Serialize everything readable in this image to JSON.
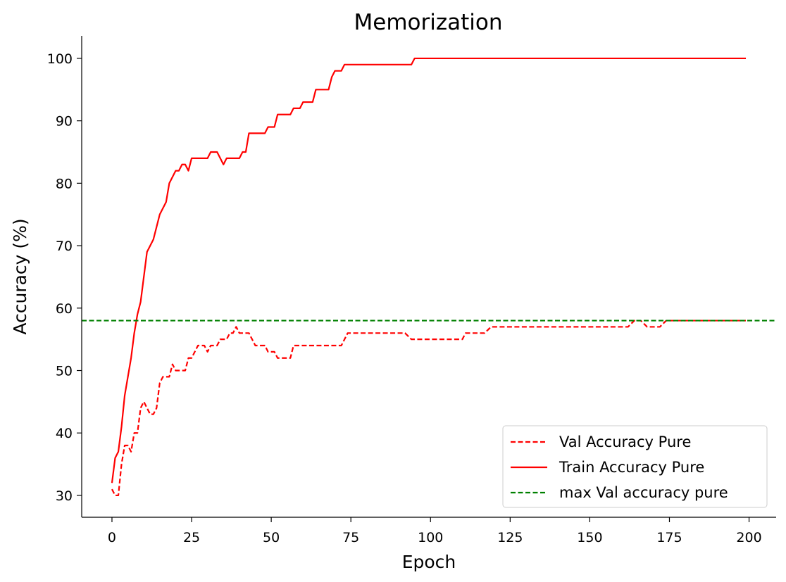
{
  "chart_data": {
    "type": "line",
    "title": "Memorization",
    "xlabel": "Epoch",
    "ylabel": "Accuracy (%)",
    "xlim": [
      -9.5,
      208.5
    ],
    "ylim": [
      26.5,
      103.6
    ],
    "xticks": [
      0,
      25,
      50,
      75,
      100,
      125,
      150,
      175,
      200
    ],
    "yticks": [
      30,
      40,
      50,
      60,
      70,
      80,
      90,
      100
    ],
    "grid": false,
    "legend_position": "lower-right",
    "series": [
      {
        "name": "Val Accuracy Pure",
        "color": "#ff0000",
        "style": "dashed",
        "x": [
          0,
          1,
          2,
          3,
          4,
          5,
          6,
          7,
          8,
          9,
          10,
          11,
          12,
          13,
          14,
          15,
          16,
          17,
          18,
          19,
          20,
          21,
          22,
          23,
          24,
          25,
          26,
          27,
          28,
          29,
          30,
          31,
          32,
          33,
          34,
          35,
          36,
          37,
          38,
          39,
          40,
          41,
          42,
          43,
          44,
          45,
          46,
          47,
          48,
          49,
          50,
          51,
          52,
          53,
          54,
          55,
          56,
          57,
          58,
          60,
          65,
          70,
          72,
          74,
          76,
          80,
          85,
          90,
          92,
          94,
          100,
          105,
          110,
          111,
          115,
          117,
          119,
          125,
          130,
          135,
          140,
          145,
          150,
          155,
          160,
          162,
          164,
          166,
          168,
          170,
          172,
          174,
          180,
          185,
          190,
          195,
          199
        ],
        "y": [
          31,
          30,
          30,
          35,
          38,
          38,
          37,
          40,
          40,
          44,
          45,
          44,
          43,
          43,
          44,
          48,
          49,
          49,
          49,
          51,
          50,
          50,
          50,
          50,
          52,
          52,
          53,
          54,
          54,
          54,
          53,
          54,
          54,
          54,
          55,
          55,
          55,
          56,
          56,
          57,
          56,
          56,
          56,
          56,
          55,
          54,
          54,
          54,
          54,
          53,
          53,
          53,
          52,
          52,
          52,
          52,
          52,
          54,
          54,
          54,
          54,
          54,
          54,
          56,
          56,
          56,
          56,
          56,
          56,
          55,
          55,
          55,
          55,
          56,
          56,
          56,
          57,
          57,
          57,
          57,
          57,
          57,
          57,
          57,
          57,
          57,
          58,
          58,
          57,
          57,
          57,
          58,
          58,
          58,
          58,
          58,
          58
        ]
      },
      {
        "name": "Train Accuracy Pure",
        "color": "#ff0000",
        "style": "solid",
        "x": [
          0,
          1,
          2,
          3,
          4,
          5,
          6,
          7,
          8,
          9,
          10,
          11,
          12,
          13,
          14,
          15,
          16,
          17,
          18,
          19,
          20,
          21,
          22,
          23,
          24,
          25,
          26,
          27,
          28,
          29,
          30,
          31,
          32,
          33,
          34,
          35,
          36,
          37,
          38,
          39,
          40,
          41,
          42,
          43,
          44,
          45,
          46,
          47,
          48,
          49,
          50,
          51,
          52,
          53,
          54,
          55,
          56,
          57,
          58,
          59,
          60,
          61,
          62,
          63,
          64,
          65,
          66,
          67,
          68,
          69,
          70,
          71,
          72,
          73,
          74,
          80,
          90,
          93,
          94,
          95,
          100,
          120,
          150,
          199
        ],
        "y": [
          32,
          36,
          37,
          41,
          46,
          49,
          52,
          56,
          59,
          61,
          65,
          69,
          70,
          71,
          73,
          75,
          76,
          77,
          80,
          81,
          82,
          82,
          83,
          83,
          82,
          84,
          84,
          84,
          84,
          84,
          84,
          85,
          85,
          85,
          84,
          83,
          84,
          84,
          84,
          84,
          84,
          85,
          85,
          88,
          88,
          88,
          88,
          88,
          88,
          89,
          89,
          89,
          91,
          91,
          91,
          91,
          91,
          92,
          92,
          92,
          93,
          93,
          93,
          93,
          95,
          95,
          95,
          95,
          95,
          97,
          98,
          98,
          98,
          99,
          99,
          99,
          99,
          99,
          99,
          100,
          100,
          100,
          100,
          100
        ]
      },
      {
        "name": "max Val accuracy pure",
        "color": "#008000",
        "style": "dashed",
        "hline": 58
      }
    ]
  }
}
